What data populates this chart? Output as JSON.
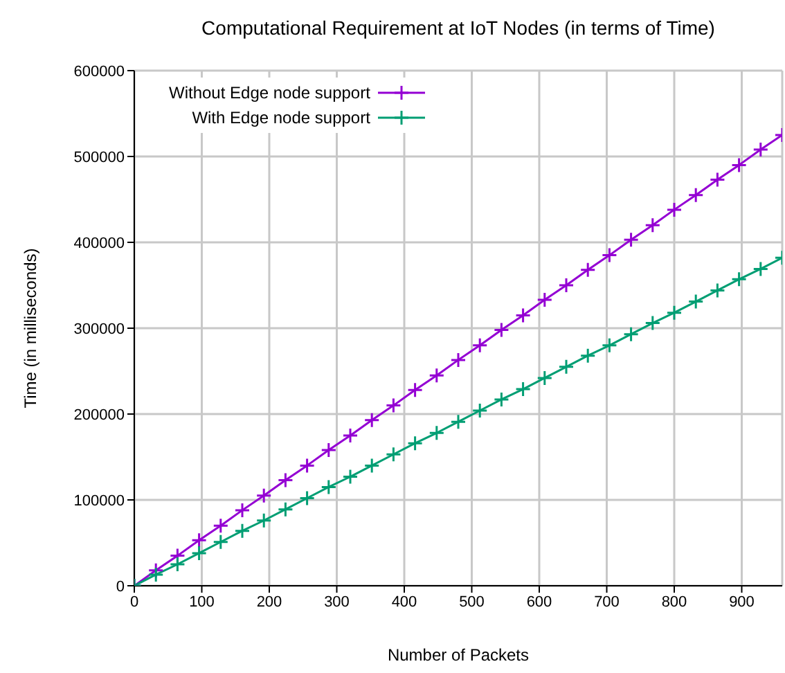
{
  "chart_data": {
    "type": "line",
    "title": "Computational Requirement at IoT Nodes (in terms of Time)",
    "xlabel": "Number of Packets",
    "ylabel": "Time (in milliseconds)",
    "x": [
      0,
      32,
      64,
      96,
      128,
      160,
      192,
      224,
      256,
      288,
      320,
      352,
      384,
      416,
      448,
      480,
      512,
      544,
      576,
      608,
      640,
      672,
      704,
      736,
      768,
      800,
      832,
      864,
      896,
      928,
      960
    ],
    "series": [
      {
        "name": "Without Edge node support",
        "color": "#9400d3",
        "marker": "cross",
        "values": [
          0,
          18000,
          35000,
          53000,
          70000,
          88000,
          105000,
          123000,
          140000,
          158000,
          175000,
          193000,
          210000,
          228000,
          245000,
          263000,
          280000,
          298000,
          315000,
          333000,
          350000,
          368000,
          385000,
          403000,
          420000,
          438000,
          455000,
          473000,
          490000,
          508000,
          525000
        ]
      },
      {
        "name": "With Edge node support",
        "color": "#009e73",
        "marker": "cross",
        "values": [
          0,
          13000,
          25000,
          38000,
          51000,
          64000,
          76000,
          89000,
          102000,
          115000,
          127000,
          140000,
          153000,
          166000,
          178000,
          191000,
          204000,
          217000,
          229000,
          242000,
          255000,
          268000,
          280000,
          293000,
          306000,
          318000,
          331000,
          344000,
          357000,
          369000,
          382000
        ]
      }
    ],
    "xlim": [
      0,
      960
    ],
    "xticks": [
      0,
      100,
      200,
      300,
      400,
      500,
      600,
      700,
      800,
      900
    ],
    "ylim": [
      0,
      600000
    ],
    "yticks": [
      0,
      100000,
      200000,
      300000,
      400000,
      500000,
      600000
    ],
    "grid": true,
    "legend": "top left",
    "line_style": "solid"
  }
}
